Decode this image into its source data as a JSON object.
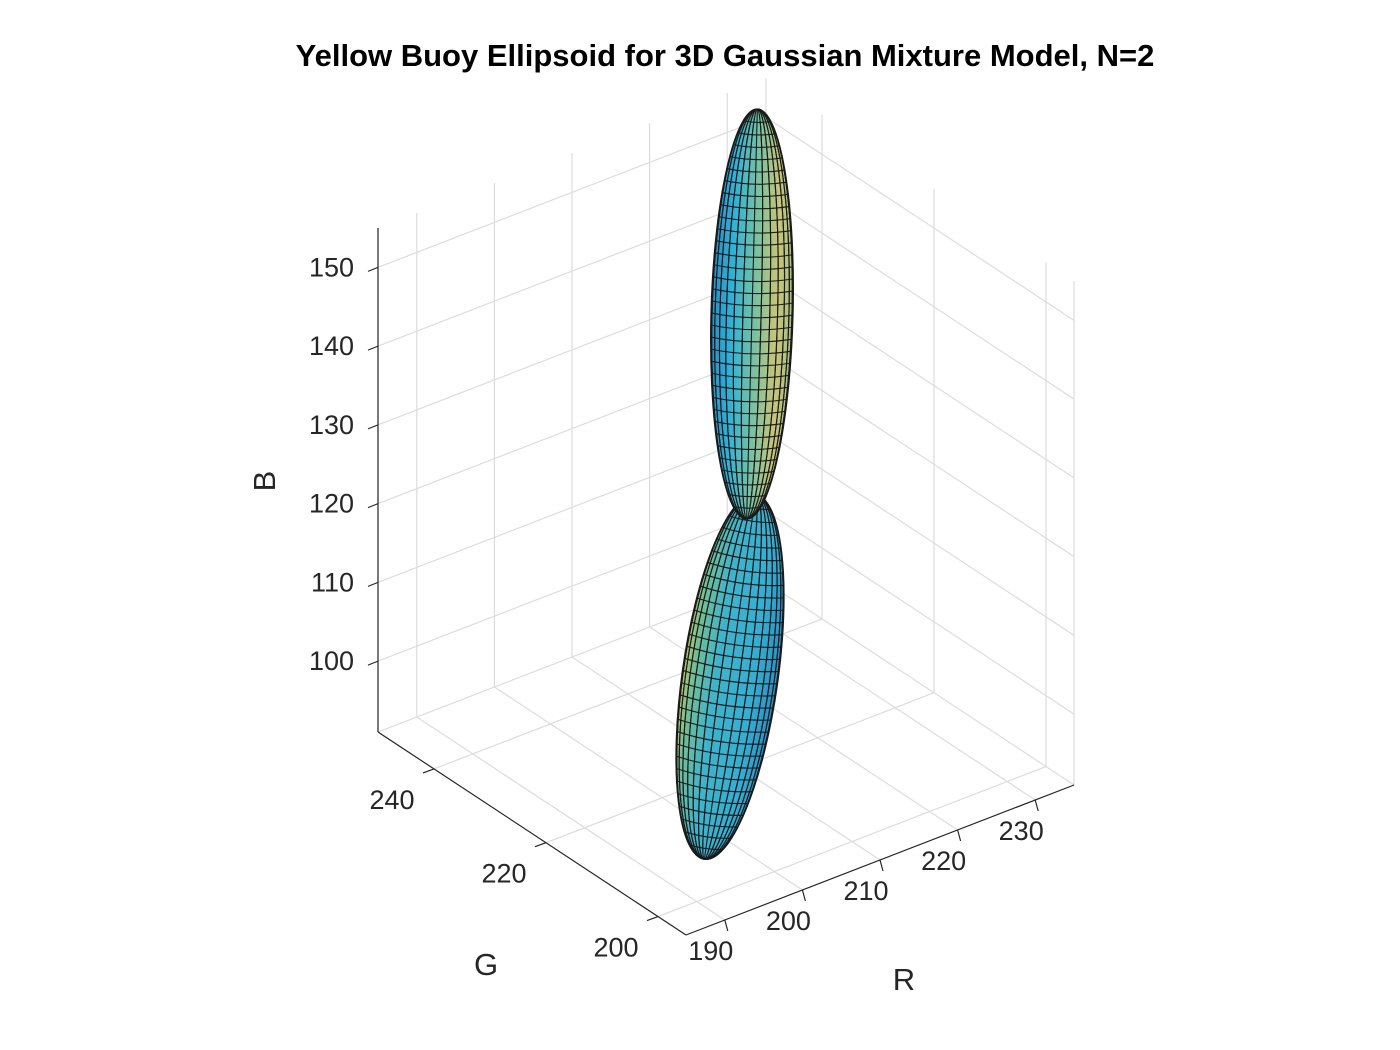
{
  "chart_data": {
    "type": "surface",
    "title": "Yellow Buoy Ellipsoid for 3D Gaussian Mixture Model, N=2",
    "xlabel": "R",
    "ylabel": "G",
    "zlabel": "B",
    "x_ticks": [
      "190",
      "200",
      "210",
      "220",
      "230"
    ],
    "y_ticks": [
      "200",
      "220",
      "240"
    ],
    "z_ticks": [
      "100",
      "110",
      "120",
      "130",
      "140",
      "150"
    ],
    "grid": true,
    "colormap": "parula",
    "series": [
      {
        "component": 1,
        "center_rgb": [
          206,
          222,
          134
        ],
        "extent_B": [
          118,
          157
        ]
      },
      {
        "component": 2,
        "center_rgb": [
          205,
          214,
          108
        ],
        "extent_B": [
          82,
          123
        ]
      }
    ],
    "colors": {
      "mesh_edge": "#1a1a1a",
      "grid": "#dcdcdc",
      "axis": "#262626"
    }
  }
}
